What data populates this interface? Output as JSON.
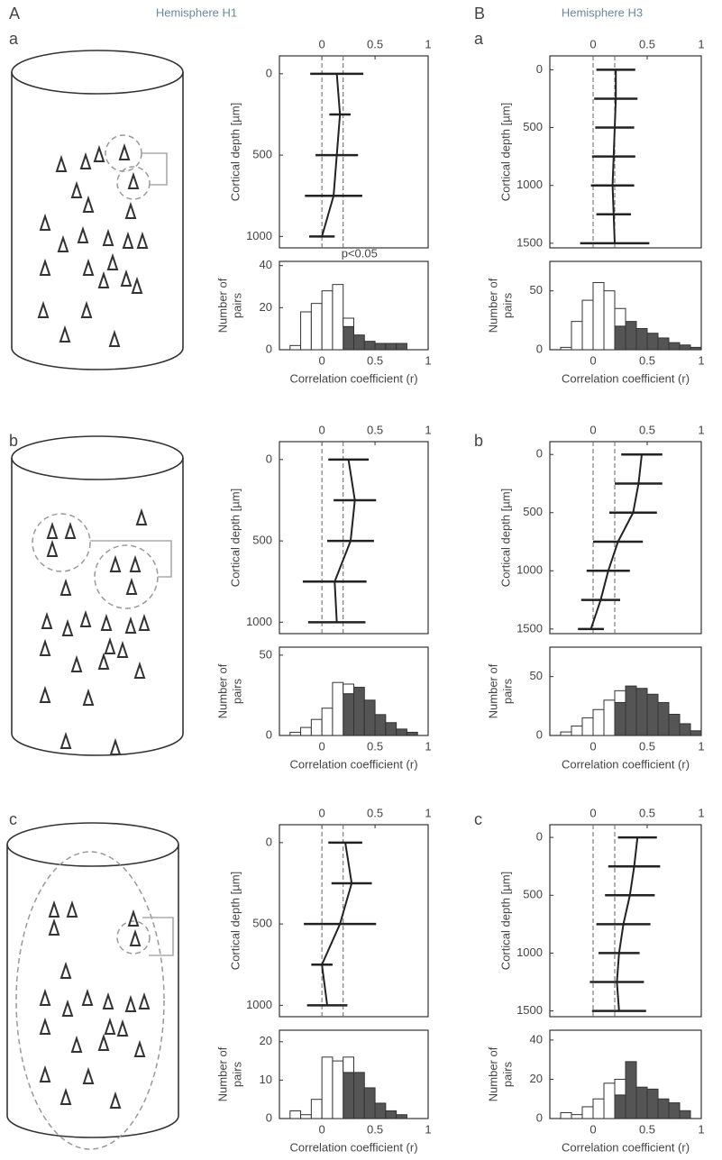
{
  "columns": [
    {
      "letter": "A",
      "title": "Hemisphere H1",
      "rows": [
        "a",
        "b",
        "c"
      ]
    },
    {
      "letter": "B",
      "title": "Hemisphere H3",
      "rows": [
        "a",
        "b",
        "c"
      ]
    }
  ],
  "chart_data": [
    {
      "type": "errorbar",
      "y_label": "Cortical depth [µm]",
      "y": [
        0,
        250,
        500,
        750,
        1000
      ],
      "values": [
        0.14,
        0.17,
        0.14,
        0.11,
        0.0
      ],
      "errors": [
        0.25,
        0.1,
        0.2,
        0.27,
        0.12
      ],
      "color": "#222222",
      "xlim": [
        -0.4,
        1
      ],
      "xticks": [
        0,
        0.5,
        1
      ],
      "ylim": [
        -110,
        1070
      ],
      "yticks": [
        0,
        500,
        1000
      ],
      "y_reversed": true,
      "reference_lines": [
        0,
        0.2
      ]
    },
    {
      "type": "histogram",
      "annotation": "p<0.05",
      "x_label": "Correlation coefficient (r)",
      "y_label": [
        "Number of",
        "pairs"
      ],
      "bins": [
        -0.3,
        -0.2,
        -0.1,
        0,
        0.1,
        0.2,
        0.3,
        0.4,
        0.5,
        0.6,
        0.7,
        0.8
      ],
      "series": [
        {
          "color": "#555555",
          "values": [
            0,
            0,
            0,
            0,
            0,
            11,
            7,
            4,
            3,
            3,
            3
          ]
        },
        {
          "color": "#ffffff",
          "values": [
            2,
            18,
            22,
            28,
            31,
            4,
            0,
            0,
            0,
            0,
            0
          ]
        }
      ],
      "xlim": [
        -0.4,
        1
      ],
      "xticks": [
        0,
        0.5,
        1
      ],
      "ylim": [
        0,
        42
      ],
      "yticks": [
        0,
        20,
        40
      ]
    },
    {
      "type": "errorbar",
      "y_label": "Cortical depth [µm]",
      "y": [
        0,
        250,
        500,
        750,
        1000
      ],
      "values": [
        0.25,
        0.31,
        0.27,
        0.12,
        0.14
      ],
      "errors": [
        0.19,
        0.2,
        0.22,
        0.3,
        0.27
      ],
      "color": "#222222",
      "xlim": [
        -0.4,
        1
      ],
      "xticks": [
        0,
        0.5,
        1
      ],
      "ylim": [
        -110,
        1070
      ],
      "yticks": [
        0,
        500,
        1000
      ],
      "y_reversed": true,
      "reference_lines": [
        0,
        0.2
      ]
    },
    {
      "type": "histogram",
      "x_label": "Correlation coefficient (r)",
      "y_label": [
        "Number of",
        "pairs"
      ],
      "bins": [
        -0.3,
        -0.2,
        -0.1,
        0,
        0.1,
        0.2,
        0.3,
        0.4,
        0.5,
        0.6,
        0.7,
        0.8,
        0.9
      ],
      "series": [
        {
          "color": "#555555",
          "values": [
            0,
            0,
            0,
            0,
            0,
            26,
            30,
            22,
            13,
            8,
            4,
            2
          ]
        },
        {
          "color": "#ffffff",
          "values": [
            2,
            5,
            10,
            17,
            33,
            6,
            0,
            0,
            0,
            0,
            0,
            0
          ]
        }
      ],
      "xlim": [
        -0.4,
        1
      ],
      "xticks": [
        0,
        0.5,
        1
      ],
      "ylim": [
        0,
        55
      ],
      "yticks": [
        0,
        50
      ]
    },
    {
      "type": "errorbar",
      "y_label": "Cortical depth [µm]",
      "y": [
        0,
        250,
        500,
        750,
        1000
      ],
      "values": [
        0.22,
        0.28,
        0.17,
        0.0,
        0.05
      ],
      "errors": [
        0.16,
        0.19,
        0.34,
        0.1,
        0.19
      ],
      "color": "#222222",
      "xlim": [
        -0.4,
        1
      ],
      "xticks": [
        0,
        0.5,
        1
      ],
      "ylim": [
        -110,
        1070
      ],
      "yticks": [
        0,
        500,
        1000
      ],
      "y_reversed": true,
      "reference_lines": [
        0,
        0.2
      ]
    },
    {
      "type": "histogram",
      "x_label": "Correlation coefficient (r)",
      "y_label": [
        "Number of",
        "pairs"
      ],
      "bins": [
        -0.3,
        -0.2,
        -0.1,
        0,
        0.1,
        0.2,
        0.3,
        0.4,
        0.5,
        0.6,
        0.7,
        0.8,
        0.9
      ],
      "series": [
        {
          "color": "#555555",
          "values": [
            0,
            0,
            0,
            0,
            0,
            12,
            12,
            8,
            4,
            2,
            1,
            0
          ]
        },
        {
          "color": "#ffffff",
          "values": [
            2,
            1,
            5,
            16,
            15,
            4,
            0,
            0,
            0,
            0,
            0,
            0
          ]
        }
      ],
      "xlim": [
        -0.4,
        1
      ],
      "xticks": [
        0,
        0.5,
        1
      ],
      "ylim": [
        0,
        23
      ],
      "yticks": [
        0,
        10,
        20
      ]
    },
    {
      "type": "errorbar",
      "y_label": "Cortical depth [µm]",
      "y": [
        0,
        250,
        500,
        750,
        1000,
        1250,
        1500
      ],
      "values": [
        0.21,
        0.21,
        0.2,
        0.19,
        0.18,
        0.19,
        0.2
      ],
      "errors": [
        0.18,
        0.2,
        0.18,
        0.2,
        0.2,
        0.16,
        0.32
      ],
      "color": "#222222",
      "xlim": [
        -0.4,
        1
      ],
      "xticks": [
        0,
        0.5,
        1
      ],
      "ylim": [
        -120,
        1540
      ],
      "yticks": [
        0,
        500,
        1000,
        1500
      ],
      "y_reversed": true,
      "reference_lines": [
        0,
        0.2
      ]
    },
    {
      "type": "histogram",
      "x_label": "Correlation coefficient (r)",
      "y_label": [
        "Number of",
        "pairs"
      ],
      "bins": [
        -0.3,
        -0.2,
        -0.1,
        0,
        0.1,
        0.2,
        0.3,
        0.4,
        0.5,
        0.6,
        0.7,
        0.8,
        0.9,
        1.0
      ],
      "series": [
        {
          "color": "#555555",
          "values": [
            0,
            0,
            0,
            0,
            0,
            20,
            24,
            18,
            14,
            10,
            6,
            4,
            2
          ]
        },
        {
          "color": "#ffffff",
          "values": [
            2,
            24,
            42,
            57,
            50,
            15,
            0,
            0,
            0,
            0,
            0,
            0,
            0
          ]
        }
      ],
      "xlim": [
        -0.4,
        1
      ],
      "xticks": [
        0,
        0.5,
        1
      ],
      "ylim": [
        0,
        75
      ],
      "yticks": [
        0,
        50
      ]
    },
    {
      "type": "errorbar",
      "y_label": "Cortical depth [µm]",
      "y": [
        0,
        250,
        500,
        750,
        1000,
        1250,
        1500
      ],
      "values": [
        0.45,
        0.42,
        0.37,
        0.23,
        0.14,
        0.07,
        -0.02
      ],
      "errors": [
        0.19,
        0.22,
        0.22,
        0.23,
        0.2,
        0.18,
        0.12
      ],
      "color": "#222222",
      "xlim": [
        -0.4,
        1
      ],
      "xticks": [
        0,
        0.5,
        1
      ],
      "ylim": [
        -110,
        1540
      ],
      "yticks": [
        0,
        500,
        1000,
        1500
      ],
      "y_reversed": true,
      "reference_lines": [
        0,
        0.2
      ]
    },
    {
      "type": "histogram",
      "x_label": "Correlation coefficient (r)",
      "y_label": [
        "Number of",
        "pairs"
      ],
      "bins": [
        -0.3,
        -0.2,
        -0.1,
        0,
        0.1,
        0.2,
        0.3,
        0.4,
        0.5,
        0.6,
        0.7,
        0.8,
        0.9,
        1.0
      ],
      "series": [
        {
          "color": "#555555",
          "values": [
            0,
            0,
            0,
            0,
            0,
            28,
            42,
            40,
            35,
            28,
            18,
            10,
            4
          ]
        },
        {
          "color": "#ffffff",
          "values": [
            3,
            8,
            15,
            22,
            30,
            10,
            0,
            0,
            0,
            0,
            0,
            0,
            0
          ]
        }
      ],
      "xlim": [
        -0.4,
        1
      ],
      "xticks": [
        0,
        0.5,
        1
      ],
      "ylim": [
        0,
        75
      ],
      "yticks": [
        0,
        50
      ]
    },
    {
      "type": "errorbar",
      "y_label": "Cortical depth [µm]",
      "y": [
        0,
        250,
        500,
        750,
        1000,
        1250,
        1500
      ],
      "values": [
        0.41,
        0.38,
        0.34,
        0.28,
        0.24,
        0.22,
        0.24
      ],
      "errors": [
        0.18,
        0.24,
        0.23,
        0.25,
        0.19,
        0.25,
        0.25
      ],
      "color": "#222222",
      "xlim": [
        -0.4,
        1
      ],
      "xticks": [
        0,
        0.5,
        1
      ],
      "ylim": [
        -110,
        1550
      ],
      "yticks": [
        0,
        500,
        1000,
        1500
      ],
      "y_reversed": true,
      "reference_lines": [
        0,
        0.2
      ]
    },
    {
      "type": "histogram",
      "x_label": "Correlation coefficient (r)",
      "y_label": [
        "Number of",
        "pairs"
      ],
      "bins": [
        -0.3,
        -0.2,
        -0.1,
        0,
        0.1,
        0.2,
        0.3,
        0.4,
        0.5,
        0.6,
        0.7,
        0.8,
        0.9
      ],
      "series": [
        {
          "color": "#555555",
          "values": [
            0,
            0,
            0,
            0,
            0,
            12,
            29,
            16,
            15,
            10,
            8,
            4
          ]
        },
        {
          "color": "#ffffff",
          "values": [
            3,
            2,
            6,
            10,
            18,
            8,
            0,
            0,
            0,
            0,
            0,
            0
          ]
        }
      ],
      "xlim": [
        -0.4,
        1
      ],
      "xticks": [
        0,
        0.5,
        1
      ],
      "ylim": [
        0,
        45
      ],
      "yticks": [
        0,
        20,
        40
      ]
    }
  ]
}
